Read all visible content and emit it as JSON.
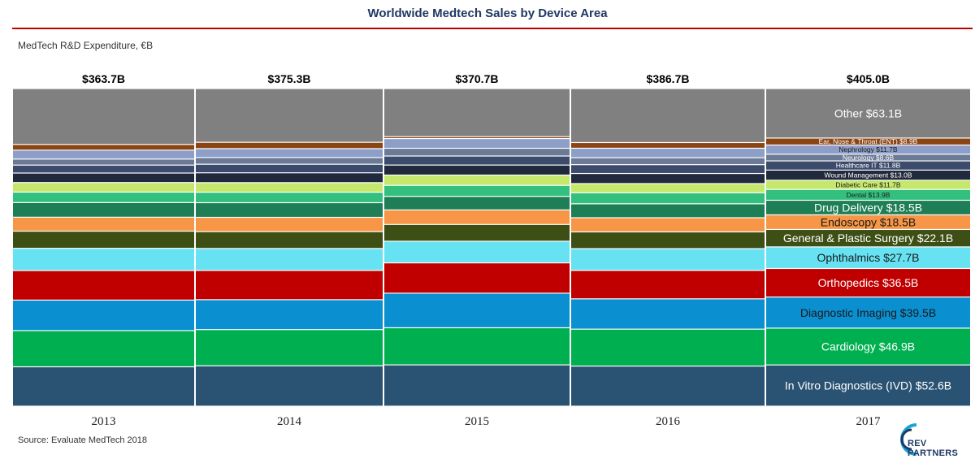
{
  "header": {
    "title": "Worldwide Medtech Sales by Device Area",
    "subtitle": "MedTech R&D Expenditure, €B"
  },
  "footer": {
    "source": "Source: Evaluate MedTech 2018",
    "logo_text": "REV PARTNERS"
  },
  "chart_data": {
    "type": "bar",
    "stacked": true,
    "normalized": true,
    "categories": [
      "2013",
      "2014",
      "2015",
      "2016",
      "2017"
    ],
    "totals": [
      "$363.7B",
      "$375.3B",
      "$370.7B",
      "$386.7B",
      "$405.0B"
    ],
    "total_values": [
      363.7,
      375.3,
      370.7,
      386.7,
      405.0
    ],
    "series": [
      {
        "name": "In Vitro Diagnostics (IVD)",
        "label": "In Vitro Diagnostics (IVD) $52.6B",
        "color": "#2a5373",
        "text_color": "#ffffff",
        "label_size": "large",
        "values": [
          12.4,
          12.7,
          12.8,
          12.7,
          13.0
        ]
      },
      {
        "name": "Cardiology",
        "label": "Cardiology $46.9B",
        "color": "#00b050",
        "text_color": "#ffffff",
        "label_size": "large",
        "values": [
          11.4,
          11.4,
          11.5,
          11.7,
          11.6
        ]
      },
      {
        "name": "Diagnostic Imaging",
        "label": "Diagnostic Imaging $39.5B",
        "color": "#0a8fd0",
        "text_color": "#1a1a1a",
        "label_size": "large",
        "values": [
          9.6,
          9.4,
          10.7,
          9.6,
          9.8
        ]
      },
      {
        "name": "Orthopedics",
        "label": "Orthopedics $36.5B",
        "color": "#c00000",
        "text_color": "#ffffff",
        "label_size": "large",
        "values": [
          9.3,
          9.2,
          9.4,
          9.0,
          9.0
        ]
      },
      {
        "name": "Ophthalmics",
        "label": "Ophthalmics $27.7B",
        "color": "#66e2f2",
        "text_color": "#1a1a1a",
        "label_size": "large",
        "values": [
          7.0,
          6.9,
          6.7,
          6.9,
          6.8
        ]
      },
      {
        "name": "General & Plastic Surgery",
        "label": "General & Plastic Surgery $22.1B",
        "color": "#3d4f14",
        "text_color": "#ffffff",
        "label_size": "large",
        "values": [
          5.4,
          5.3,
          5.2,
          5.3,
          5.5
        ]
      },
      {
        "name": "Endoscopy",
        "label": "Endoscopy $18.5B",
        "color": "#f79646",
        "text_color": "#1a1a1a",
        "label_size": "large",
        "values": [
          4.4,
          4.5,
          4.5,
          4.5,
          4.6
        ]
      },
      {
        "name": "Drug Delivery",
        "label": "Drug Delivery $18.5B",
        "color": "#1e7f57",
        "text_color": "#ffffff",
        "label_size": "large",
        "values": [
          4.6,
          4.6,
          4.2,
          4.4,
          4.6
        ]
      },
      {
        "name": "Dental",
        "label": "Dental $13.9B",
        "color": "#33c07e",
        "text_color": "#1a1a1a",
        "label_size": "small",
        "values": [
          3.3,
          3.3,
          3.4,
          3.5,
          3.4
        ]
      },
      {
        "name": "Diabetic Care",
        "label": "Diabetic Care $11.7B",
        "color": "#c5e86c",
        "text_color": "#1a1a1a",
        "label_size": "small",
        "values": [
          3.0,
          3.0,
          3.2,
          2.9,
          2.9
        ]
      },
      {
        "name": "Wound Management",
        "label": "Wound Management $13.0B",
        "color": "#202a3c",
        "text_color": "#ffffff",
        "label_size": "small",
        "values": [
          3.0,
          3.1,
          3.1,
          3.2,
          3.2
        ]
      },
      {
        "name": "Healthcare IT",
        "label": "Healthcare IT $11.8B",
        "color": "#3c4b6c",
        "text_color": "#ffffff",
        "label_size": "small",
        "values": [
          2.5,
          2.7,
          2.8,
          2.8,
          2.9
        ]
      },
      {
        "name": "Neurology",
        "label": "Neurology $8.6B",
        "color": "#6b7b96",
        "text_color": "#ffffff",
        "label_size": "small",
        "values": [
          1.9,
          2.1,
          2.4,
          2.2,
          2.1
        ]
      },
      {
        "name": "Nephrology",
        "label": "Nephrology $11.7B",
        "color": "#8d9fc9",
        "text_color": "#1a1a1a",
        "label_size": "small",
        "values": [
          2.8,
          2.8,
          3.0,
          3.0,
          2.9
        ]
      },
      {
        "name": "Ear, Nose & Throat (ENT)",
        "label": "Ear, Nose & Throat (ENT) $8.9B",
        "color": "#8b4513",
        "text_color": "#ffffff",
        "label_size": "small",
        "values": [
          1.8,
          2.0,
          0.6,
          1.8,
          2.2
        ]
      },
      {
        "name": "Other",
        "label": "Other $63.1B",
        "color": "#808080",
        "text_color": "#ffffff",
        "label_size": "large",
        "values": [
          17.6,
          16.9,
          14.9,
          17.1,
          15.6
        ]
      }
    ],
    "title": "Worldwide Medtech Sales by Device Area",
    "xlabel": "",
    "ylabel": "",
    "grid": false,
    "legend": "none",
    "labeled_category": "2017"
  }
}
